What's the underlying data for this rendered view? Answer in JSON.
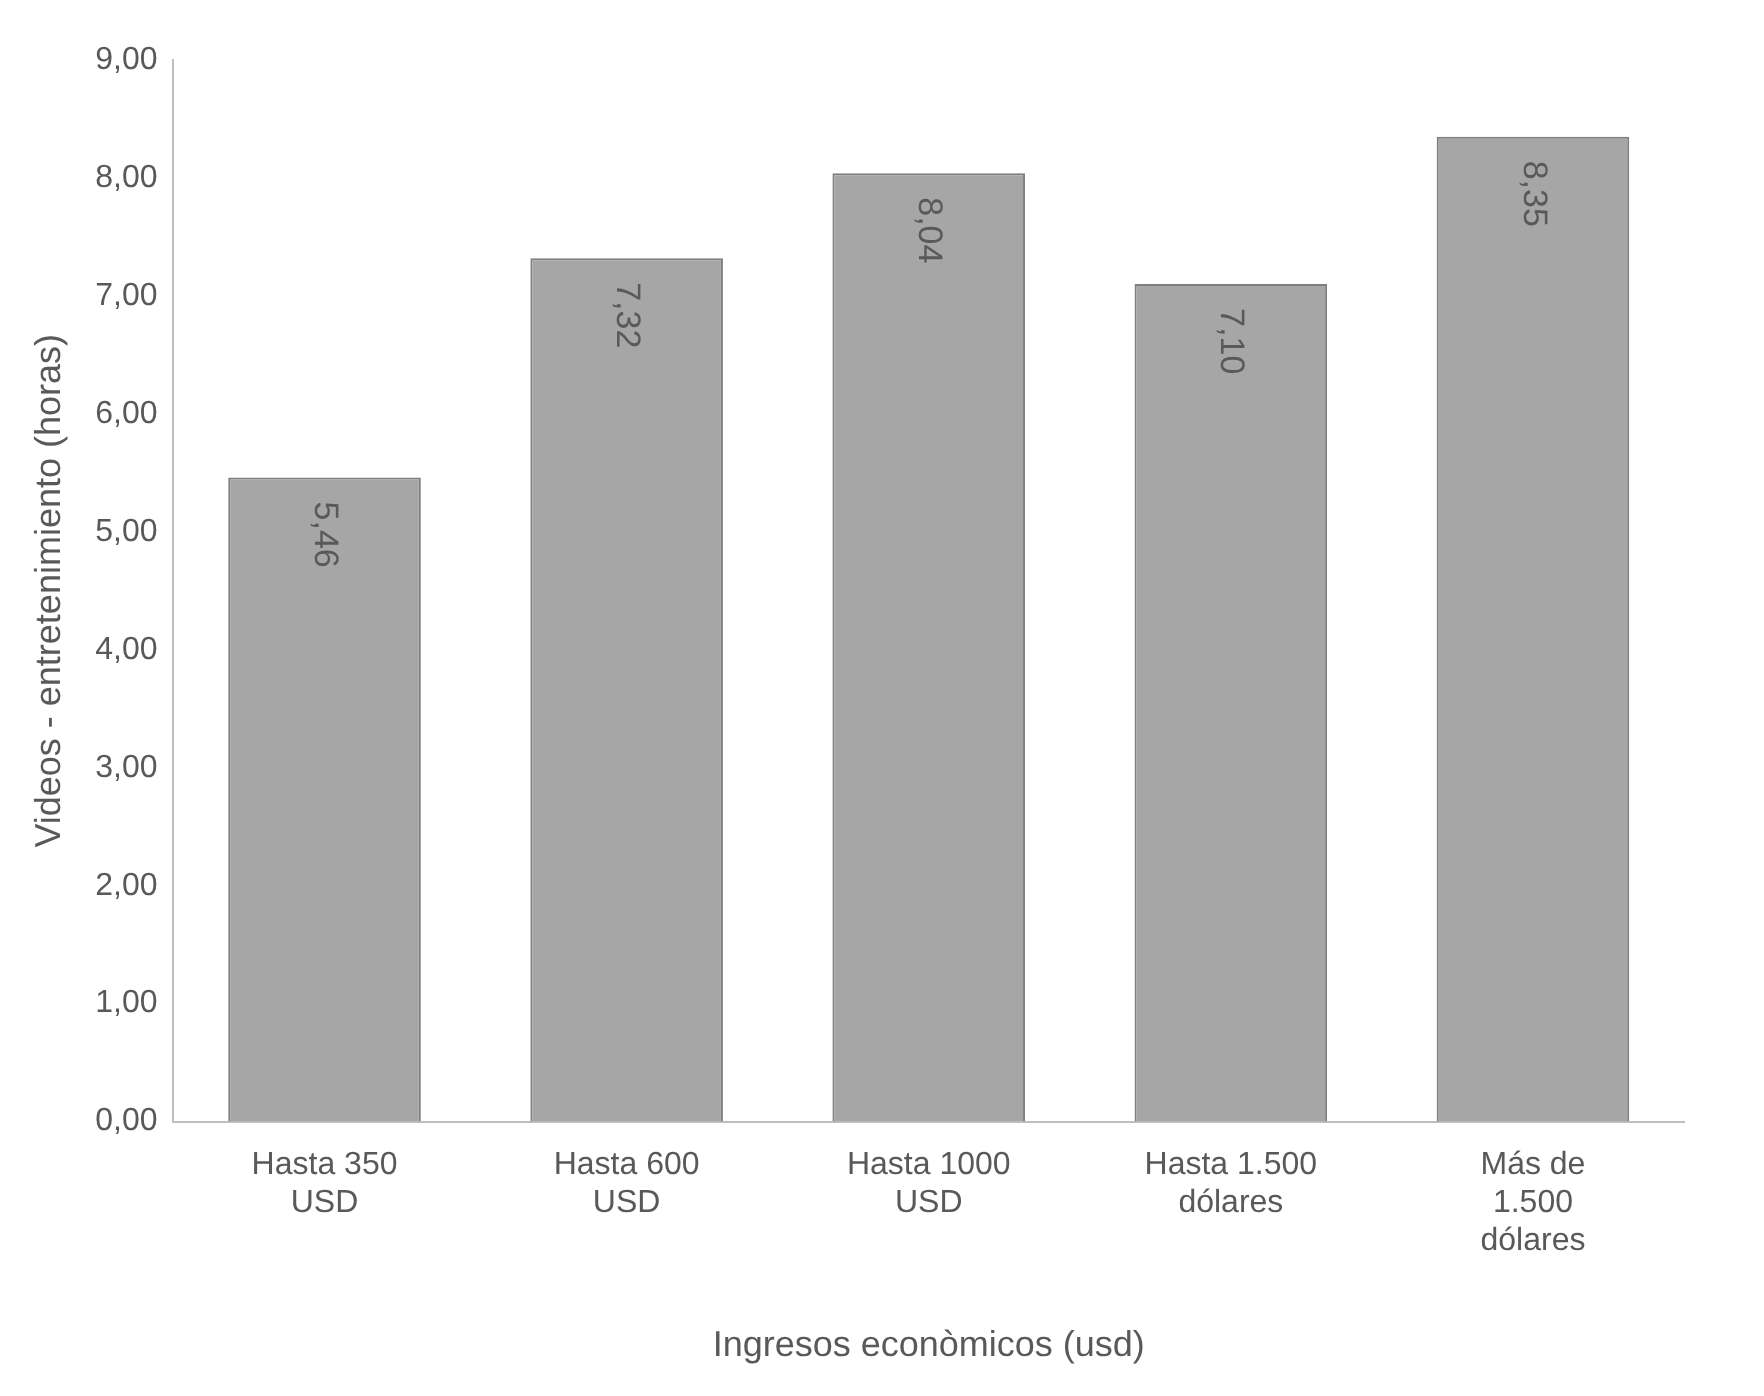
{
  "chart_data": {
    "type": "bar",
    "xlabel": "Ingresos econòmicos (usd)",
    "ylabel": "Videos - entretenimiento (horas)",
    "categories": [
      "Hasta 350 USD",
      "Hasta 600 USD",
      "Hasta 1000 USD",
      "Hasta 1.500 dólares",
      "Más de 1.500 dólares"
    ],
    "values": [
      5.46,
      7.32,
      8.04,
      7.1,
      8.35
    ],
    "value_labels": [
      "5,46",
      "7,32",
      "8,04",
      "7,10",
      "8,35"
    ],
    "color": "#a6a6a6",
    "ylim": [
      0,
      9
    ],
    "yticks": [
      {
        "value": 0,
        "label": "0,00"
      },
      {
        "value": 1,
        "label": "1,00"
      },
      {
        "value": 2,
        "label": "2,00"
      },
      {
        "value": 3,
        "label": "3,00"
      },
      {
        "value": 4,
        "label": "4,00"
      },
      {
        "value": 5,
        "label": "5,00"
      },
      {
        "value": 6,
        "label": "6,00"
      },
      {
        "value": 7,
        "label": "7,00"
      },
      {
        "value": 8,
        "label": "8,00"
      },
      {
        "value": 9,
        "label": "9,00"
      }
    ],
    "grid": false,
    "legend": false
  }
}
